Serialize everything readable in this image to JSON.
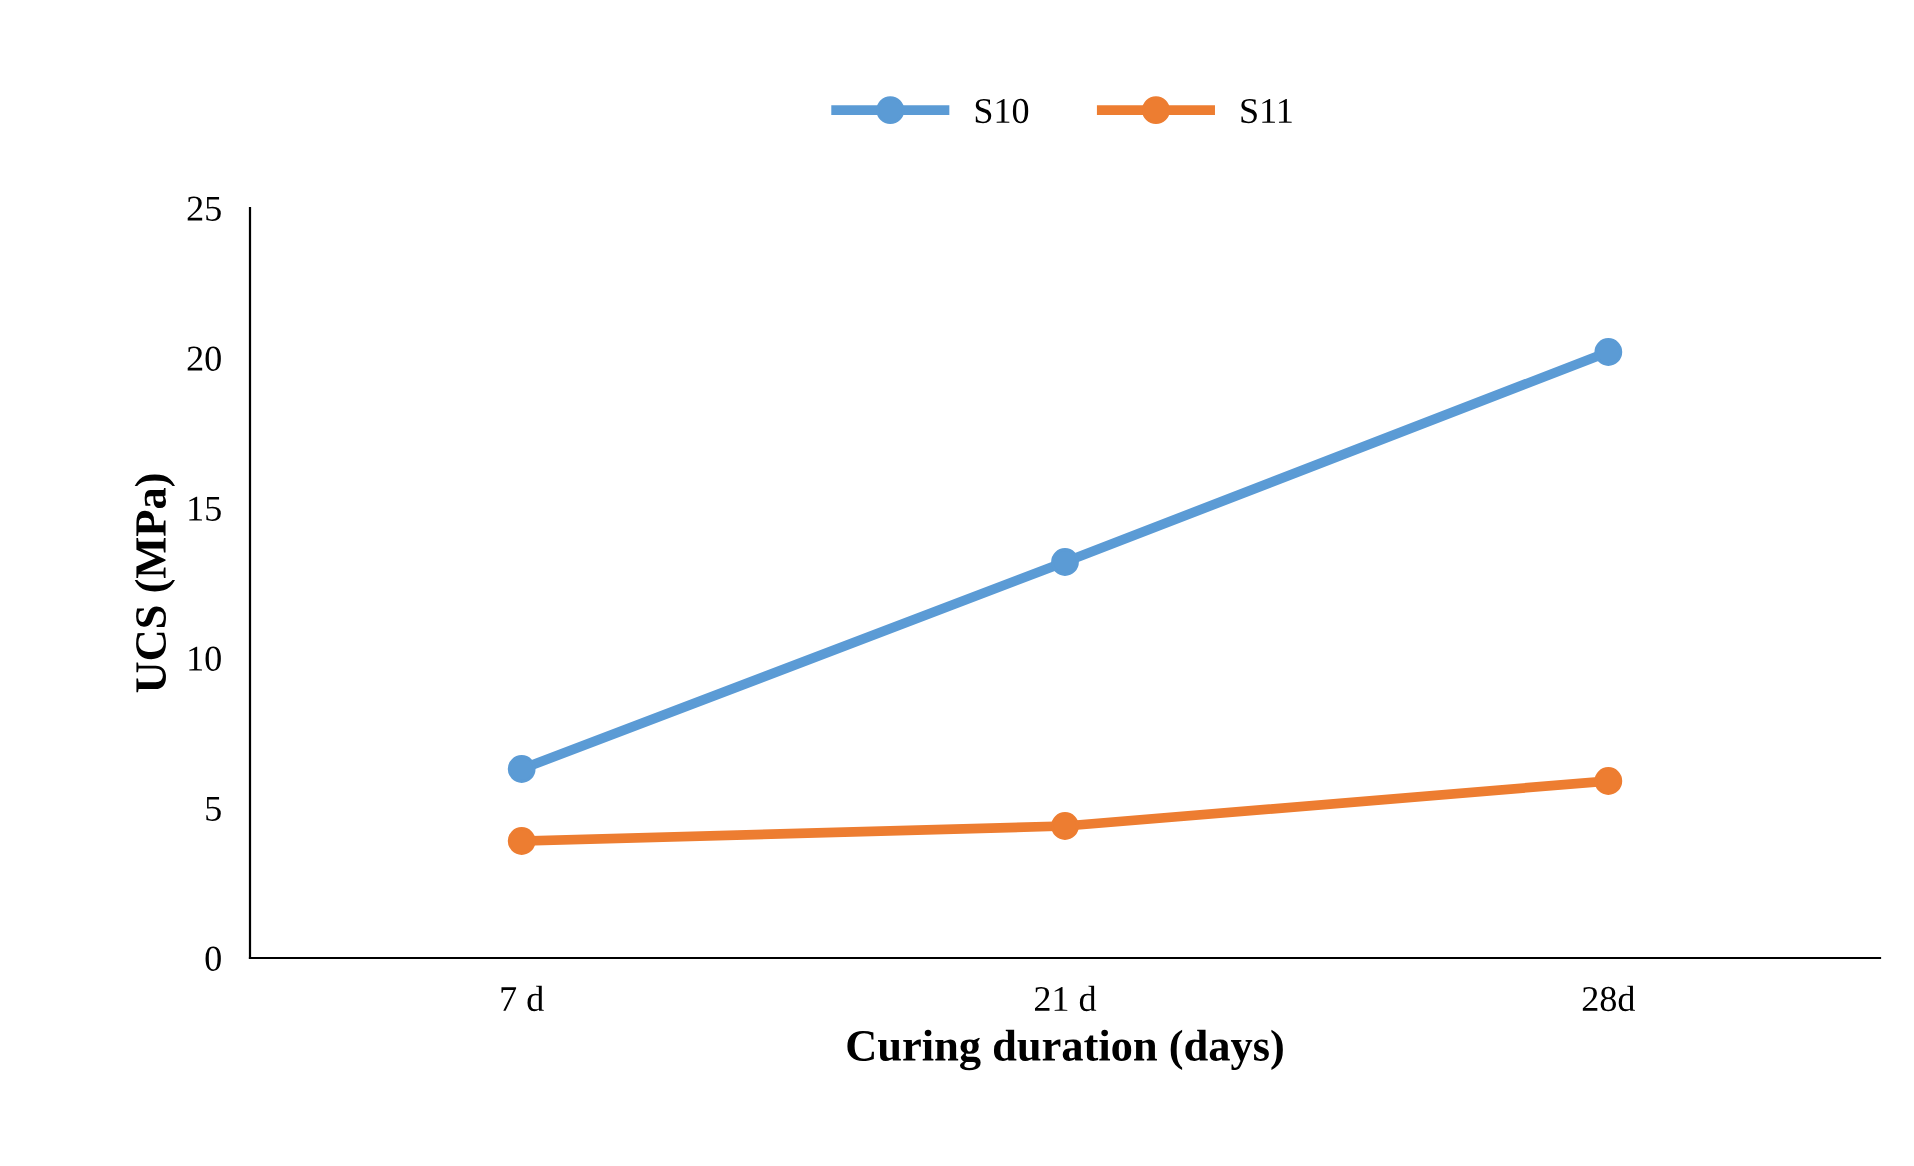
{
  "chart_data": {
    "type": "line",
    "xlabel": "Curing duration (days)",
    "ylabel": "UCS (MPa)",
    "categories": [
      "7 d",
      "21 d",
      "28d"
    ],
    "series": [
      {
        "name": "S10",
        "color": "#5b9bd5",
        "values": [
          6.3,
          13.2,
          20.2
        ]
      },
      {
        "name": "S11",
        "color": "#ed7d31",
        "values": [
          3.9,
          4.4,
          5.9
        ]
      }
    ],
    "ylim": [
      0,
      25
    ],
    "yticks": [
      0,
      5,
      10,
      15,
      20,
      25
    ],
    "grid": false,
    "legend": "top",
    "marker": "circle",
    "line_style": "solid"
  }
}
